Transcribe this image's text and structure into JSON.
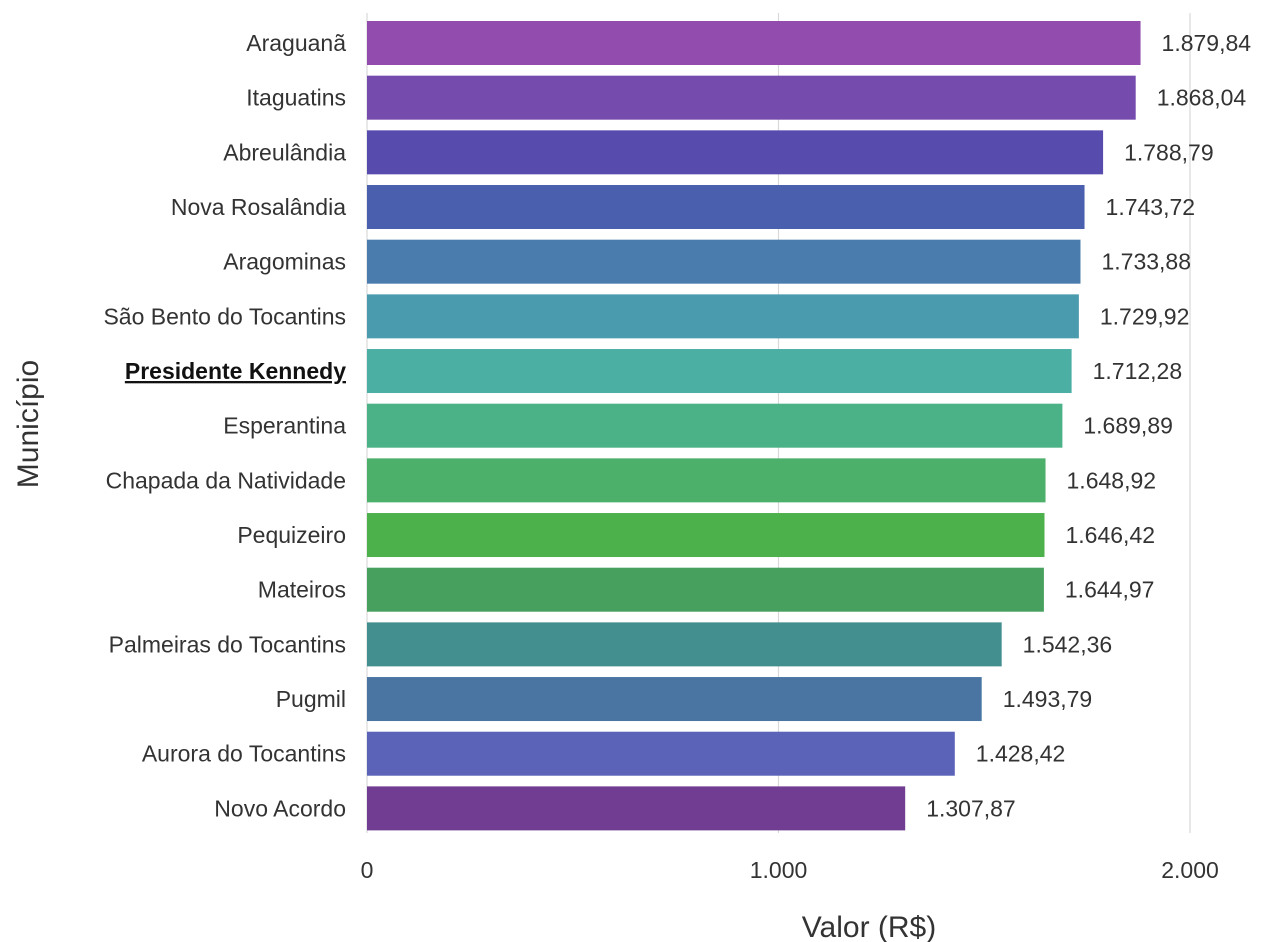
{
  "chart_data": {
    "type": "bar",
    "orientation": "horizontal",
    "xlabel": "Valor (R$)",
    "ylabel": "Município",
    "xlim": [
      0,
      2000
    ],
    "xticks": [
      0,
      1000,
      2000
    ],
    "xtick_labels": [
      "0",
      "1.000",
      "2.000"
    ],
    "grid": "vertical",
    "highlight": "Presidente Kennedy",
    "categories": [
      "Araguanã",
      "Itaguatins",
      "Abreulândia",
      "Nova Rosalândia",
      "Aragominas",
      "São Bento do Tocantins",
      "Presidente Kennedy",
      "Esperantina",
      "Chapada da Natividade",
      "Pequizeiro",
      "Mateiros",
      "Palmeiras do Tocantins",
      "Pugmil",
      "Aurora do Tocantins",
      "Novo Acordo"
    ],
    "values": [
      1879.84,
      1868.04,
      1788.79,
      1743.72,
      1733.88,
      1729.92,
      1712.28,
      1689.89,
      1648.92,
      1646.42,
      1644.97,
      1542.36,
      1493.79,
      1428.42,
      1307.87
    ],
    "value_labels": [
      "1.879,84",
      "1.868,04",
      "1.788,79",
      "1.743,72",
      "1.733,88",
      "1.729,92",
      "1.712,28",
      "1.689,89",
      "1.648,92",
      "1.646,42",
      "1.644,97",
      "1.542,36",
      "1.493,79",
      "1.428,42",
      "1.307,87"
    ],
    "colors": [
      "#914CAE",
      "#754BAE",
      "#574BAD",
      "#4A5FAE",
      "#4A7DAE",
      "#4A9BAE",
      "#4BAFA4",
      "#4BB187",
      "#4CB06A",
      "#4CB04B",
      "#47A05E",
      "#438F8F",
      "#4A75A3",
      "#5A63B8",
      "#713D92"
    ]
  }
}
